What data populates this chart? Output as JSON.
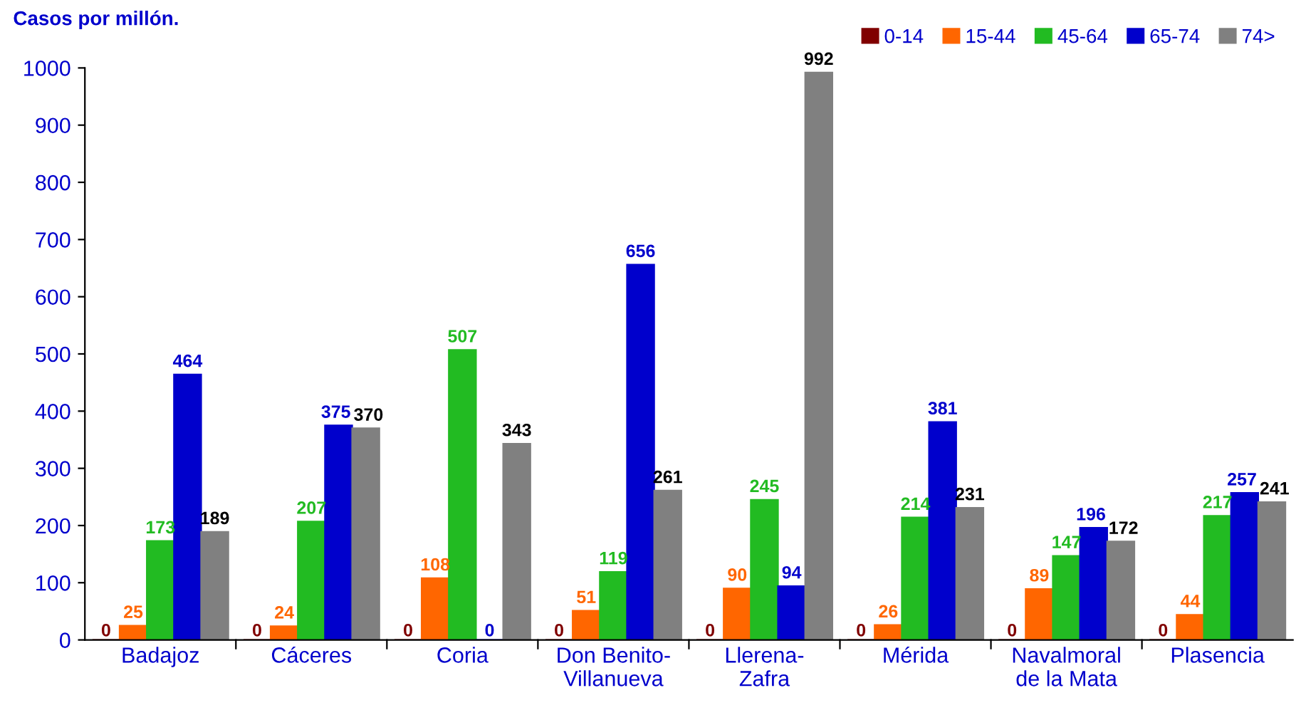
{
  "chart_data": {
    "type": "bar",
    "ylabel": "Casos por millón.",
    "categories": [
      "Badajoz",
      "Cáceres",
      "Coria",
      "Don Benito-\nVillanueva",
      "Llerena-\nZafra",
      "Mérida",
      "Navalmoral\nde la Mata",
      "Plasencia"
    ],
    "series": [
      {
        "name": "0-14",
        "color": "#800000",
        "values": [
          0,
          0,
          0,
          0,
          0,
          0,
          0,
          0
        ]
      },
      {
        "name": "15-44",
        "color": "#ff6600",
        "values": [
          25,
          24,
          108,
          51,
          90,
          26,
          89,
          44
        ]
      },
      {
        "name": "45-64",
        "color": "#22bb22",
        "values": [
          173,
          207,
          507,
          119,
          245,
          214,
          147,
          217
        ]
      },
      {
        "name": "65-74",
        "color": "#0000cc",
        "values": [
          464,
          375,
          0,
          656,
          94,
          381,
          196,
          257
        ]
      },
      {
        "name": "74>",
        "color": "#808080",
        "values": [
          189,
          370,
          343,
          261,
          992,
          231,
          172,
          241
        ]
      }
    ],
    "ylim": [
      0,
      1000
    ],
    "yticks": [
      0,
      100,
      200,
      300,
      400,
      500,
      600,
      700,
      800,
      900,
      1000
    ],
    "grid": false,
    "legend": "top right",
    "data_labels": true
  }
}
